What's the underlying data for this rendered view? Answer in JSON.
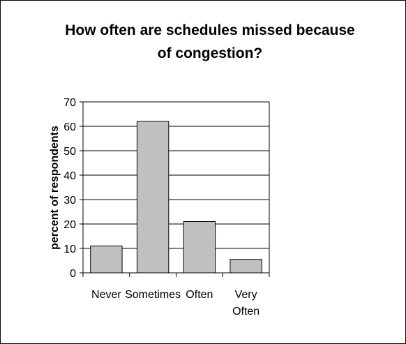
{
  "chart_data": {
    "type": "bar",
    "title": "How often are schedules missed because of congestion?",
    "ylabel": "percent of respondents",
    "categories": [
      "Never",
      "Sometimes",
      "Often",
      "Very Often"
    ],
    "values": [
      11,
      62,
      21,
      5.5
    ],
    "color": "#c0c0c0",
    "ylim": [
      0,
      70
    ],
    "yticks": [
      0,
      10,
      20,
      30,
      40,
      50,
      60,
      70
    ],
    "grid": true
  }
}
